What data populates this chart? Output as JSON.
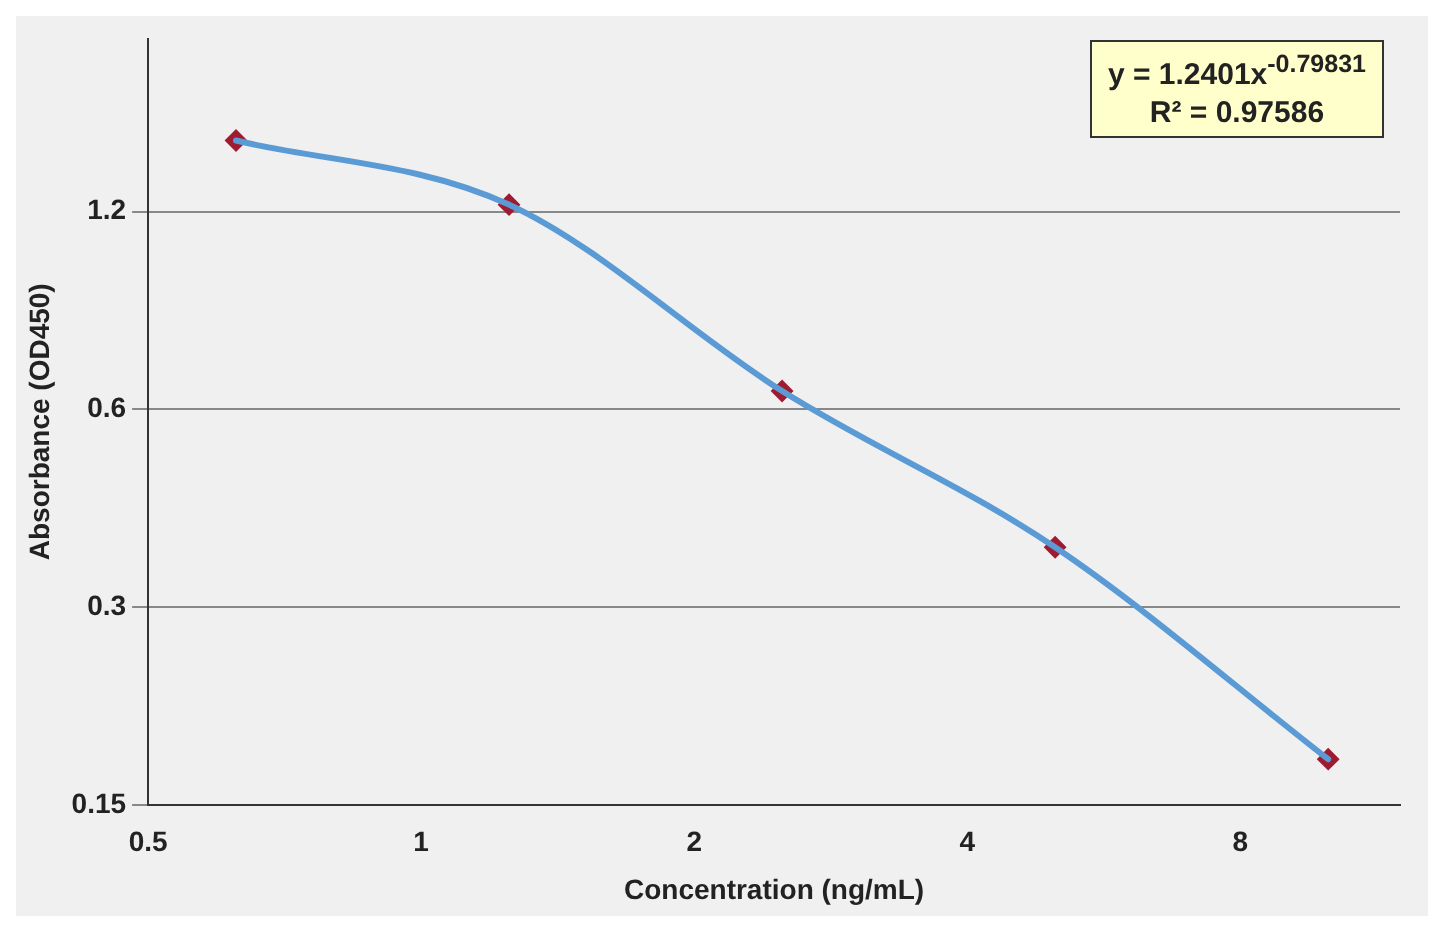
{
  "chart_data": {
    "type": "line",
    "xlabel": "Concentration (ng/mL)",
    "ylabel": "Absorbance (OD450)",
    "x": [
      0.625,
      1.25,
      2.5,
      5,
      10
    ],
    "series": [
      {
        "color": "#5b9bd5",
        "values": [
          1.54,
          1.23,
          0.64,
          0.37,
          0.176
        ],
        "marker": "none"
      },
      {
        "type": "scatter",
        "color": "#9e1b32",
        "values": [
          1.54,
          1.23,
          0.64,
          0.37,
          0.176
        ],
        "marker": "diamond"
      }
    ],
    "xlim": [
      0.5,
      12
    ],
    "xticks": [
      0.5,
      1,
      2,
      4,
      8
    ],
    "ylim": [
      0.15,
      2.2
    ],
    "yticks": [
      0.15,
      0.3,
      0.6,
      1.2
    ],
    "log": "xy",
    "grid": "y",
    "legend": false,
    "annotations": [
      "y = 1.2401x$^{-0.79831}$",
      "R² = 0.97586"
    ]
  }
}
